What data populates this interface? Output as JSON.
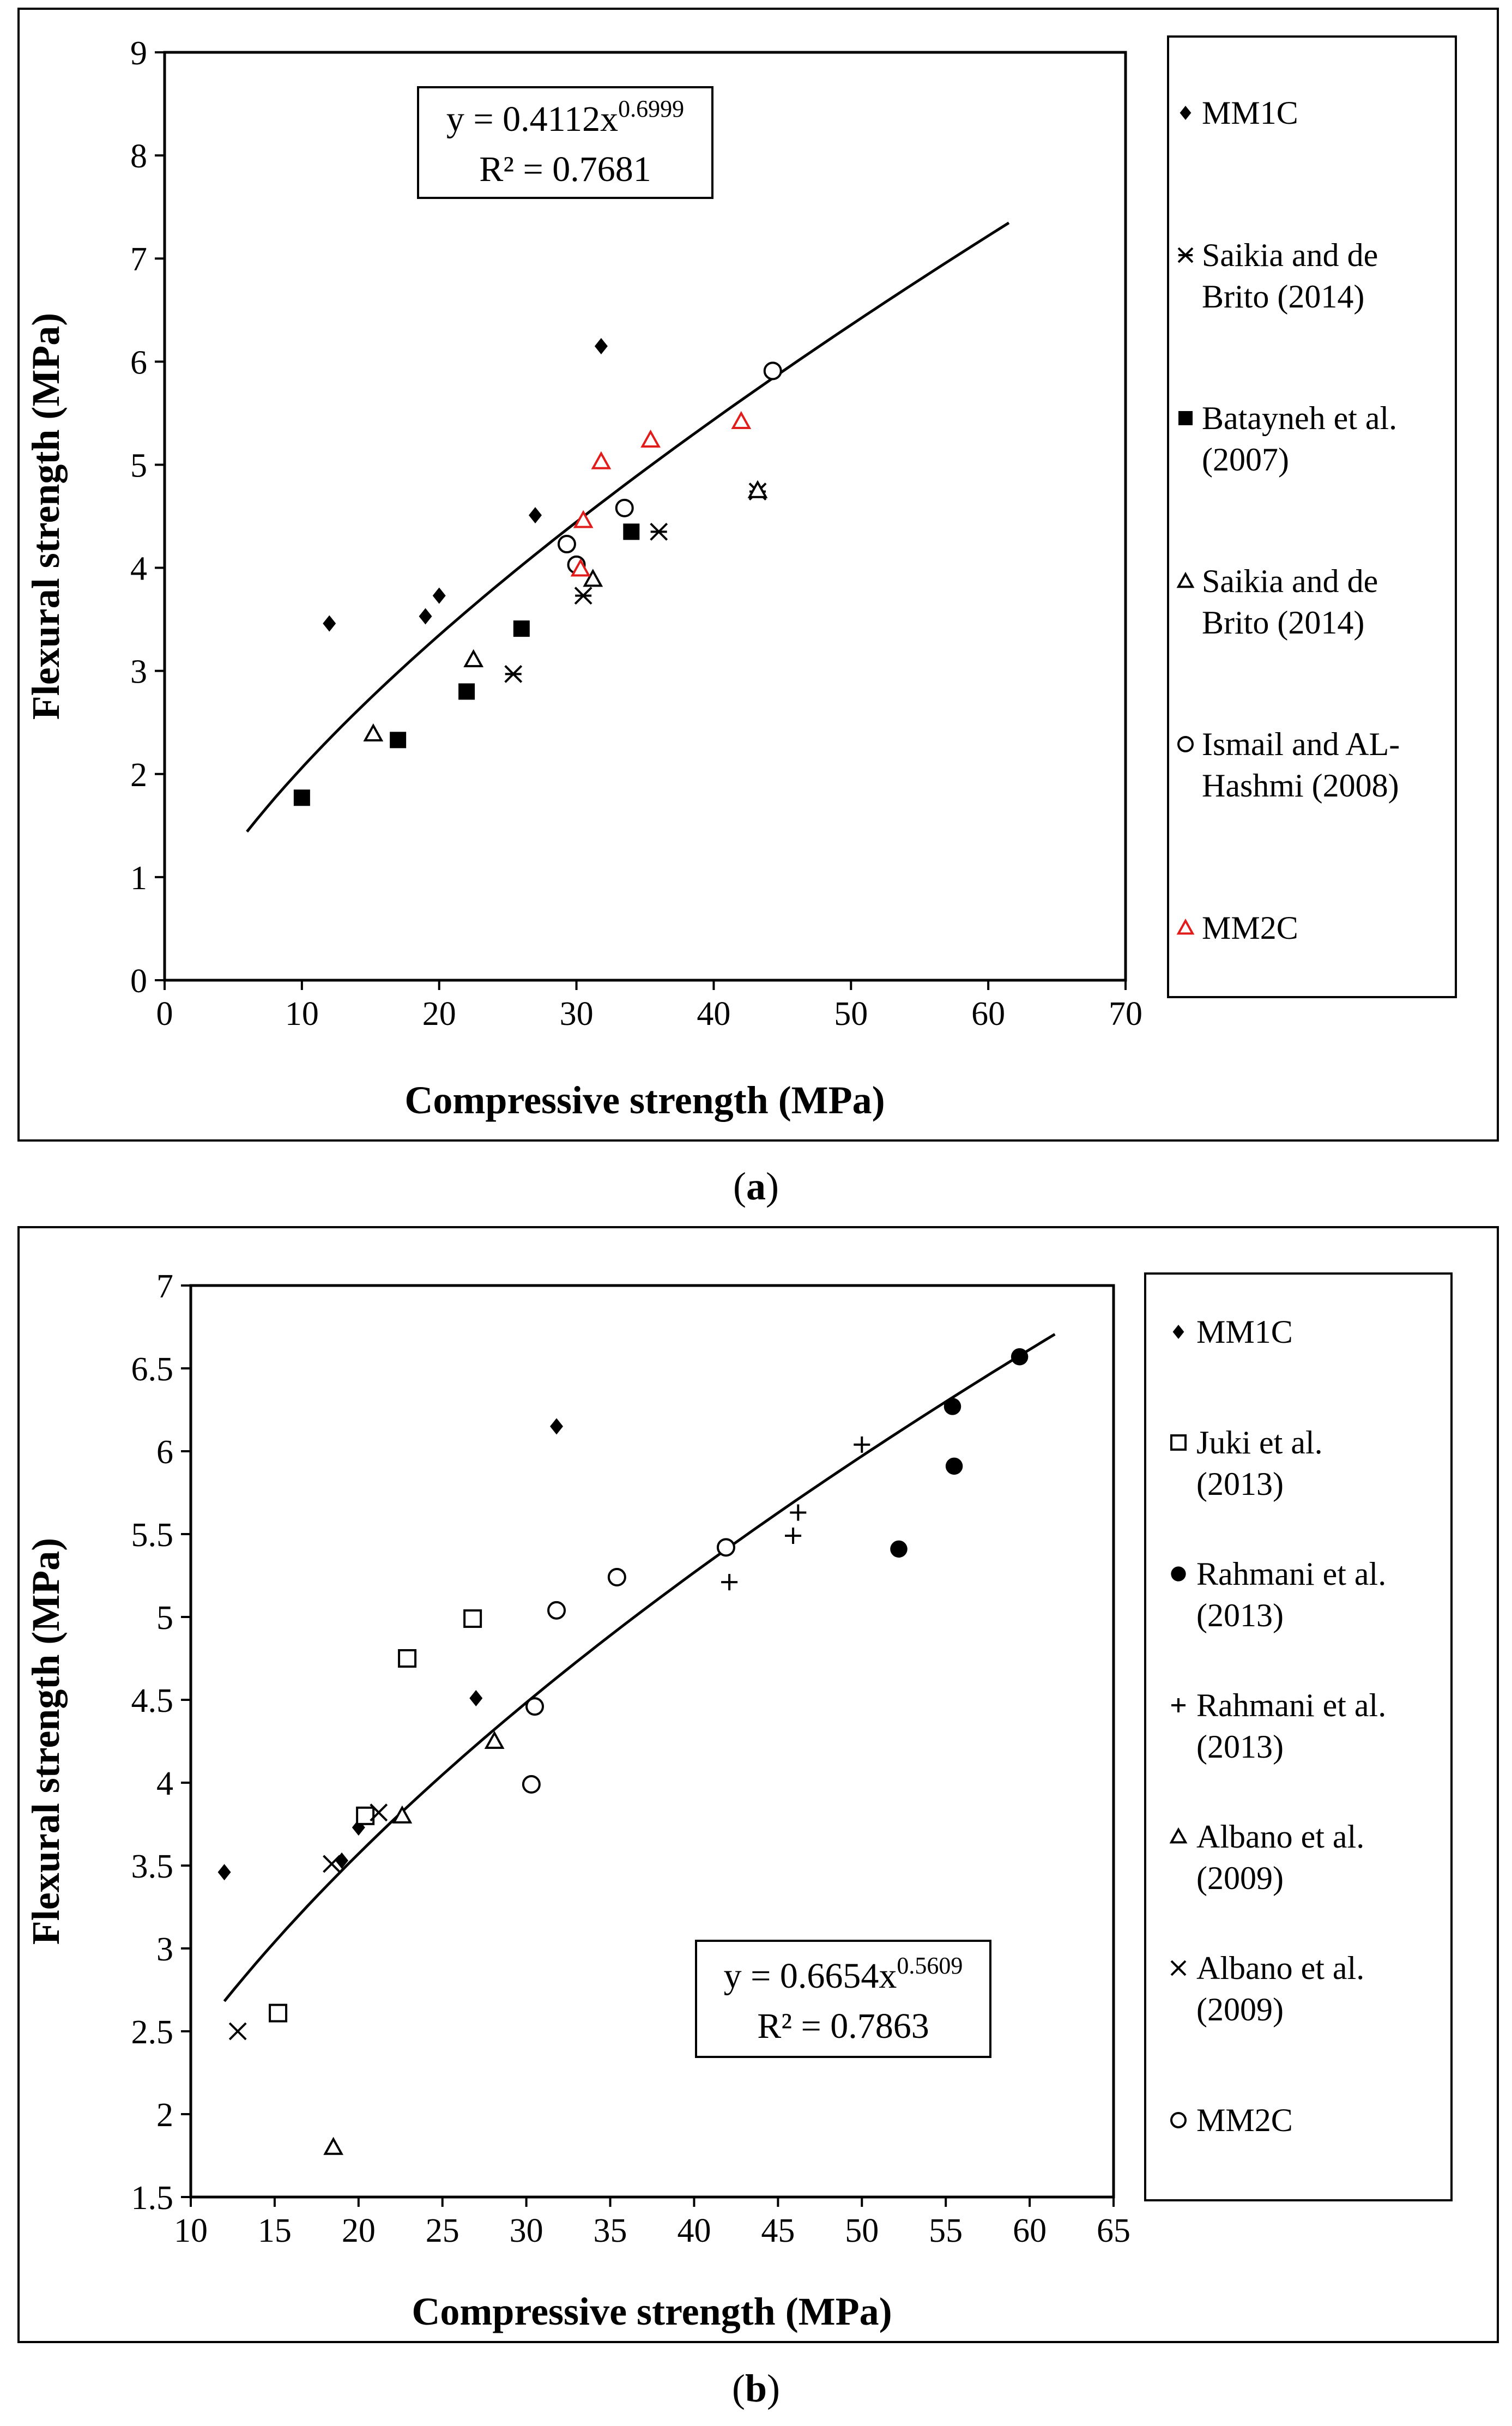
{
  "panels": [
    {
      "caption": "a",
      "equation": "y = 0.4112x",
      "equation_exponent": "0.6999",
      "r_squared": "R² = 0.7681"
    },
    {
      "caption": "b",
      "equation": "y = 0.6654x",
      "equation_exponent": "0.5609",
      "r_squared": "R² = 0.7863"
    }
  ],
  "chart_data": [
    {
      "type": "scatter",
      "panel": "a",
      "title": "",
      "xlabel": "Compressive strength (MPa)",
      "ylabel": "Flexural strength (MPa)",
      "xlim": [
        0,
        70
      ],
      "ylim": [
        0,
        9
      ],
      "xticks": [
        0,
        10,
        20,
        30,
        40,
        50,
        60,
        70
      ],
      "yticks": [
        0,
        1,
        2,
        3,
        4,
        5,
        6,
        7,
        8,
        9
      ],
      "grid": false,
      "legend_position": "right",
      "trendline": {
        "type": "power",
        "a": 0.4112,
        "b": 0.6999,
        "x_range": [
          6,
          61.5
        ]
      },
      "series": [
        {
          "name": "MM1C",
          "marker": "diamond",
          "color": "#000000",
          "x": [
            12,
            19,
            20,
            27,
            31.8
          ],
          "y": [
            3.46,
            3.53,
            3.73,
            4.51,
            6.15
          ]
        },
        {
          "name": "Saikia and de Brito (2014)",
          "marker": "asterisk",
          "color": "#000000",
          "x": [
            25.4,
            30.5,
            36,
            43.2
          ],
          "y": [
            2.97,
            3.73,
            4.35,
            4.74
          ]
        },
        {
          "name": "Batayneh et al. (2007)",
          "marker": "square",
          "color": "#000000",
          "x": [
            10,
            17,
            22,
            26,
            34
          ],
          "y": [
            1.77,
            2.33,
            2.8,
            3.41,
            4.35
          ]
        },
        {
          "name": "Saikia and de Brito (2014)",
          "marker": "triangle-open",
          "color": "#000000",
          "x": [
            15.2,
            22.5,
            31.2,
            43.2
          ],
          "y": [
            2.39,
            3.11,
            3.89,
            4.75
          ]
        },
        {
          "name": "Ismail and AL-Hashmi (2008)",
          "marker": "circle-open",
          "color": "#000000",
          "x": [
            29.3,
            30,
            33.5,
            44.3
          ],
          "y": [
            4.23,
            4.03,
            4.58,
            5.91
          ]
        },
        {
          "name": "MM2C",
          "marker": "triangle-open",
          "color": "#e21b1b",
          "x": [
            30.3,
            30.5,
            31.8,
            35.4,
            42
          ],
          "y": [
            3.99,
            4.46,
            5.03,
            5.24,
            5.42
          ]
        }
      ]
    },
    {
      "type": "scatter",
      "panel": "b",
      "title": "",
      "xlabel": "Compressive strength (MPa)",
      "ylabel": "Flexural strength (MPa)",
      "xlim": [
        10,
        65
      ],
      "ylim": [
        1.5,
        7
      ],
      "xticks": [
        10,
        15,
        20,
        25,
        30,
        35,
        40,
        45,
        50,
        55,
        60,
        65
      ],
      "yticks": [
        1.5,
        2,
        2.5,
        3,
        3.5,
        4,
        4.5,
        5,
        5.5,
        6,
        6.5,
        7
      ],
      "grid": false,
      "legend_position": "right",
      "trendline": {
        "type": "power",
        "a": 0.6654,
        "b": 0.5609,
        "x_range": [
          12,
          61.5
        ]
      },
      "series": [
        {
          "name": "MM1C",
          "marker": "diamond",
          "color": "#000000",
          "x": [
            12,
            19,
            20,
            27,
            31.8
          ],
          "y": [
            3.46,
            3.53,
            3.73,
            4.51,
            6.15
          ]
        },
        {
          "name": "Juki et al. (2013)",
          "marker": "square-open",
          "color": "#000000",
          "x": [
            15.2,
            20.4,
            22.9,
            26.8
          ],
          "y": [
            2.61,
            3.8,
            4.75,
            4.99
          ]
        },
        {
          "name": "Rahmani et al. (2013)",
          "marker": "circle",
          "color": "#000000",
          "x": [
            52.2,
            55.4,
            55.5,
            59.4
          ],
          "y": [
            5.41,
            6.27,
            5.91,
            6.57
          ]
        },
        {
          "name": "Rahmani et al. (2013)",
          "marker": "plus",
          "color": "#000000",
          "x": [
            42.1,
            45.9,
            46.2,
            50
          ],
          "y": [
            5.21,
            5.49,
            5.63,
            6.04
          ]
        },
        {
          "name": "Albano et al. (2009)",
          "marker": "triangle-open",
          "color": "#000000",
          "x": [
            18.5,
            22.6,
            28.1
          ],
          "y": [
            1.8,
            3.8,
            4.25
          ]
        },
        {
          "name": "Albano et al. (2009)",
          "marker": "x",
          "color": "#000000",
          "x": [
            12.8,
            18.4,
            21.2
          ],
          "y": [
            2.5,
            3.51,
            3.82
          ]
        },
        {
          "name": "MM2C",
          "marker": "circle-open",
          "color": "#000000",
          "x": [
            30.3,
            30.5,
            31.8,
            35.4,
            41.9
          ],
          "y": [
            3.99,
            4.46,
            5.04,
            5.24,
            5.42
          ]
        }
      ]
    }
  ]
}
